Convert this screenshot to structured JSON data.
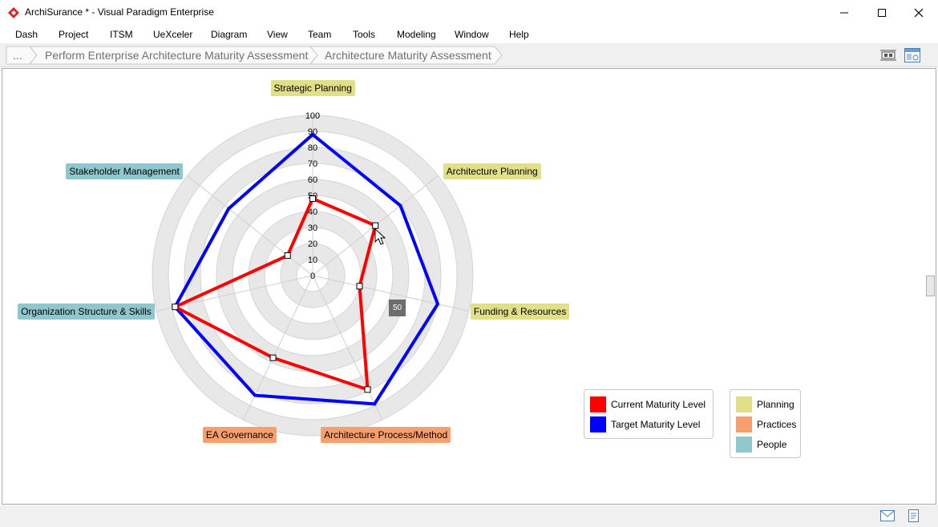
{
  "window": {
    "title": "ArchiSurance * - Visual Paradigm Enterprise",
    "minimize_icon": "minimize-icon",
    "maximize_icon": "maximize-icon",
    "close_icon": "close-icon"
  },
  "menu": [
    "Dash",
    "Project",
    "ITSM",
    "UeXceler",
    "Diagram",
    "View",
    "Team",
    "Tools",
    "Modeling",
    "Window",
    "Help"
  ],
  "breadcrumb": {
    "more": "...",
    "items": [
      "Perform Enterprise Architecture Maturity Assessment",
      "Architecture Maturity Assessment"
    ]
  },
  "tooltip": "50",
  "chart_data": {
    "type": "radar",
    "r_ticks": [
      "0",
      "10",
      "20",
      "30",
      "40",
      "50",
      "60",
      "70",
      "80",
      "90",
      "100"
    ],
    "rlim": [
      0,
      100
    ],
    "categories": [
      "Strategic Planning",
      "Architecture Planning",
      "Funding & Resources",
      "Architecture Process/Method",
      "EA Governance",
      "Organization Structure & Skills",
      "Stakeholder Management"
    ],
    "category_groups": [
      "Planning",
      "Planning",
      "Planning",
      "Practices",
      "Practices",
      "People",
      "People"
    ],
    "series": [
      {
        "name": "Current Maturity Level",
        "color": "#ff0000",
        "values": [
          48,
          50,
          30,
          79,
          57,
          88,
          20
        ]
      },
      {
        "name": "Target Maturity Level",
        "color": "#0000ff",
        "values": [
          88,
          70,
          80,
          89,
          83,
          88,
          67
        ]
      }
    ],
    "legend": {
      "series": [
        "Current Maturity Level",
        "Target Maturity Level"
      ],
      "groups": [
        {
          "name": "Planning",
          "color": "#e1e088"
        },
        {
          "name": "Practices",
          "color": "#f8a06d"
        },
        {
          "name": "People",
          "color": "#8ec7cd"
        }
      ]
    }
  }
}
